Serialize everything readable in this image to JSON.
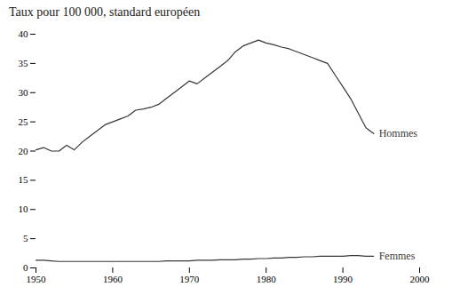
{
  "chart_data": {
    "type": "line",
    "title": "Taux pour 100 000, standard européen",
    "x": [
      1950,
      1951,
      1952,
      1953,
      1954,
      1955,
      1956,
      1957,
      1958,
      1959,
      1960,
      1961,
      1962,
      1963,
      1964,
      1965,
      1966,
      1967,
      1968,
      1969,
      1970,
      1971,
      1972,
      1973,
      1974,
      1975,
      1976,
      1977,
      1978,
      1979,
      1980,
      1981,
      1982,
      1983,
      1984,
      1985,
      1986,
      1987,
      1988,
      1989,
      1990,
      1991,
      1992,
      1993,
      1994
    ],
    "series": [
      {
        "name": "Hommes",
        "color": "#3a3635",
        "values": [
          20.2,
          20.6,
          20.0,
          20.0,
          21.0,
          20.2,
          21.5,
          22.5,
          23.5,
          24.5,
          25.0,
          25.5,
          26.0,
          27.0,
          27.2,
          27.5,
          28.0,
          29.0,
          30.0,
          31.0,
          32.0,
          31.5,
          32.5,
          33.5,
          34.5,
          35.5,
          37.0,
          38.0,
          38.5,
          39.0,
          38.5,
          38.2,
          37.8,
          37.5,
          37.0,
          36.5,
          36.0,
          35.5,
          35.0,
          33.0,
          31.0,
          29.0,
          26.5,
          24.0,
          23.0
        ]
      },
      {
        "name": "Femmes",
        "color": "#3a3635",
        "values": [
          1.3,
          1.3,
          1.2,
          1.1,
          1.1,
          1.1,
          1.1,
          1.1,
          1.1,
          1.1,
          1.1,
          1.1,
          1.1,
          1.1,
          1.1,
          1.1,
          1.1,
          1.2,
          1.2,
          1.2,
          1.2,
          1.3,
          1.3,
          1.3,
          1.4,
          1.4,
          1.4,
          1.5,
          1.5,
          1.6,
          1.6,
          1.7,
          1.7,
          1.8,
          1.8,
          1.9,
          1.9,
          2.0,
          2.0,
          2.0,
          2.0,
          2.1,
          2.1,
          2.0,
          2.0
        ]
      }
    ],
    "xlim": [
      1950,
      2000
    ],
    "xticks": [
      1950,
      1960,
      1970,
      1980,
      1990,
      2000
    ],
    "ylim": [
      0,
      40
    ],
    "yticks": [
      0,
      5,
      10,
      15,
      20,
      25,
      30,
      35,
      40
    ],
    "grid": false
  }
}
